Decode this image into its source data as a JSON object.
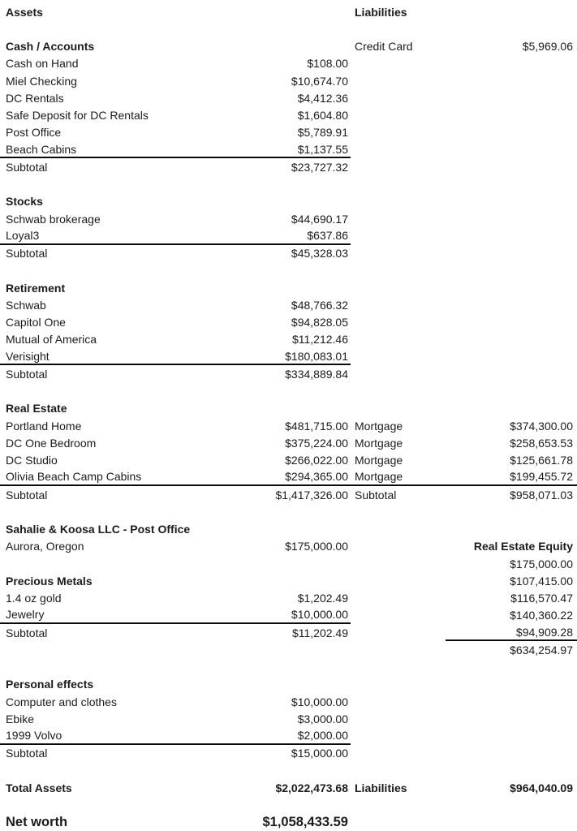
{
  "document_title": "Net worth balance sheet",
  "colors": {
    "background": "#ffffff",
    "text": "#1b1b1b",
    "rule": "#0a0a0a"
  },
  "rows": [
    {
      "l": "Assets",
      "lb": true,
      "c": "Liabilities",
      "cb": true
    },
    {},
    {
      "l": "Cash / Accounts",
      "lb": true,
      "c": "Credit Card",
      "d": "$5,969.06"
    },
    {
      "l": "Cash on Hand",
      "a": "$108.00"
    },
    {
      "l": "Miel Checking",
      "a": "$10,674.70"
    },
    {
      "l": "DC Rentals",
      "a": "$4,412.36"
    },
    {
      "l": "Safe Deposit for DC Rentals",
      "a": "$1,604.80"
    },
    {
      "l": "Post Office",
      "a": "$5,789.91"
    },
    {
      "l": "Beach Cabins",
      "a": "$1,137.55",
      "border": "ab"
    },
    {
      "l": "Subtotal",
      "a": "$23,727.32"
    },
    {},
    {
      "l": "Stocks",
      "lb": true
    },
    {
      "l": "Schwab brokerage",
      "a": "$44,690.17"
    },
    {
      "l": "Loyal3",
      "a": "$637.86",
      "border": "ab"
    },
    {
      "l": "Subtotal",
      "a": "$45,328.03"
    },
    {},
    {
      "l": "Retirement",
      "lb": true
    },
    {
      "l": "Schwab",
      "a": "$48,766.32"
    },
    {
      "l": "Capitol One",
      "a": "$94,828.05"
    },
    {
      "l": "Mutual of America",
      "a": "$11,212.46"
    },
    {
      "l": "Verisight",
      "a": "$180,083.01",
      "border": "ab"
    },
    {
      "l": "Subtotal",
      "a": "$334,889.84"
    },
    {},
    {
      "l": "Real Estate",
      "lb": true
    },
    {
      "l": "Portland Home",
      "a": "$481,715.00",
      "c": "Mortgage",
      "d": "$374,300.00"
    },
    {
      "l": "DC One Bedroom",
      "a": "$375,224.00",
      "c": "Mortgage",
      "d": "$258,653.53"
    },
    {
      "l": "DC Studio",
      "a": "$266,022.00",
      "c": "Mortgage",
      "d": "$125,661.78"
    },
    {
      "l": "Olivia Beach Camp Cabins",
      "a": "$294,365.00",
      "c": "Mortgage",
      "d": "$199,455.72",
      "border": "full"
    },
    {
      "l": "Subtotal",
      "a": "$1,417,326.00",
      "c": "Subtotal",
      "d": "$958,071.03"
    },
    {},
    {
      "l": "Sahalie & Koosa LLC - Post Office",
      "lb": true
    },
    {
      "l": "Aurora, Oregon",
      "a": "$175,000.00",
      "d": "Real Estate Equity",
      "db": true
    },
    {
      "d": "$175,000.00"
    },
    {
      "l": "Precious Metals",
      "lb": true,
      "d": "$107,415.00"
    },
    {
      "l": "1.4 oz gold",
      "a": "$1,202.49",
      "d": "$116,570.47"
    },
    {
      "l": "Jewelry",
      "a": "$10,000.00",
      "d": "$140,360.22",
      "border": "ab"
    },
    {
      "l": "Subtotal",
      "a": "$11,202.49",
      "d": "$94,909.28",
      "border": "d"
    },
    {
      "d": "$634,254.97"
    },
    {},
    {
      "l": "Personal effects",
      "lb": true
    },
    {
      "l": "Computer and clothes",
      "a": "$10,000.00"
    },
    {
      "l": "Ebike",
      "a": "$3,000.00"
    },
    {
      "l": "1999 Volvo",
      "a": "$2,000.00",
      "border": "ab"
    },
    {
      "l": "Subtotal",
      "a": "$15,000.00"
    },
    {},
    {
      "l": "Total Assets",
      "lb": true,
      "a": "$2,022,473.68",
      "ab": true,
      "c": "Liabilities",
      "cb": true,
      "d": "$964,040.09",
      "db": true
    },
    {},
    {
      "l": "Net worth",
      "lb": true,
      "a": "$1,058,433.59",
      "ab": true,
      "size": "lg"
    }
  ]
}
